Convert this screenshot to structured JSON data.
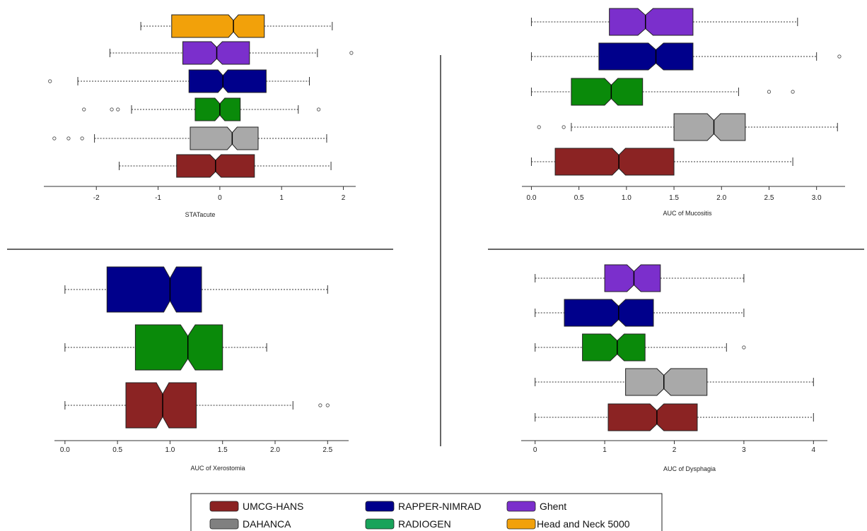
{
  "colors": {
    "UMCG-HANS": "#8B2323",
    "RAPPER-NIMRAD": "#00008B",
    "Ghent": "#7B2FCC",
    "DAHANCA": "#A9A9A9",
    "RADIOGEN": "#0A8A0A",
    "Head and Neck 5000": "#F2A10A"
  },
  "legend": {
    "items": [
      {
        "name": "UMCG-HANS",
        "color": "#8B2323"
      },
      {
        "name": "RAPPER-NIMRAD",
        "color": "#00008B"
      },
      {
        "name": "Ghent",
        "color": "#7B2FCC"
      },
      {
        "name": "DAHANCA",
        "color": "#808080"
      },
      {
        "name": "RADIOGEN",
        "color": "#18A35A"
      },
      {
        "name": "Head and Neck 5000",
        "color": "#F2A10A"
      }
    ]
  },
  "chart_data": [
    {
      "type": "boxplot",
      "xlabel": "STATacute",
      "xlim": [
        -2.85,
        2.2
      ],
      "ticks": [
        -2,
        -1,
        0,
        1,
        2
      ],
      "tick_labels": [
        "-2",
        "-1",
        "0",
        "1",
        "2"
      ],
      "series": [
        {
          "name": "Head and Neck 5000",
          "whisker_low": -1.28,
          "q1": -0.78,
          "median": 0.22,
          "q3": 0.72,
          "whisker_high": 1.82,
          "notch_low": 0.14,
          "notch_high": 0.3,
          "outliers": []
        },
        {
          "name": "Ghent",
          "whisker_low": -1.78,
          "q1": -0.6,
          "median": -0.05,
          "q3": 0.48,
          "whisker_high": 1.58,
          "notch_low": -0.14,
          "notch_high": 0.04,
          "outliers": [
            2.13
          ]
        },
        {
          "name": "RAPPER-NIMRAD",
          "whisker_low": -2.3,
          "q1": -0.5,
          "median": 0.05,
          "q3": 0.75,
          "whisker_high": 1.45,
          "notch_low": -0.03,
          "notch_high": 0.13,
          "outliers": [
            -2.75
          ]
        },
        {
          "name": "RADIOGEN",
          "whisker_low": -1.43,
          "q1": -0.4,
          "median": 0.0,
          "q3": 0.33,
          "whisker_high": 1.27,
          "notch_low": -0.08,
          "notch_high": 0.08,
          "outliers": [
            -2.2,
            -1.75,
            -1.65,
            1.6
          ]
        },
        {
          "name": "DAHANCA",
          "whisker_low": -2.03,
          "q1": -0.48,
          "median": 0.2,
          "q3": 0.62,
          "whisker_high": 1.73,
          "notch_low": 0.12,
          "notch_high": 0.28,
          "outliers": [
            -2.68,
            -2.45,
            -2.23
          ]
        },
        {
          "name": "UMCG-HANS",
          "whisker_low": -1.63,
          "q1": -0.7,
          "median": -0.07,
          "q3": 0.56,
          "whisker_high": 1.8,
          "notch_low": -0.16,
          "notch_high": 0.02,
          "outliers": []
        }
      ]
    },
    {
      "type": "boxplot",
      "xlabel": "AUC of Mucositis",
      "xlim": [
        -0.1,
        3.3
      ],
      "ticks": [
        0,
        0.5,
        1,
        1.5,
        2,
        2.5,
        3
      ],
      "tick_labels": [
        "0.0",
        "0.5",
        "1.0",
        "1.5",
        "2.0",
        "2.5",
        "3.0"
      ],
      "series": [
        {
          "name": "Ghent",
          "whisker_low": 0.0,
          "q1": 0.82,
          "median": 1.2,
          "q3": 1.7,
          "whisker_high": 2.8,
          "notch_low": 1.12,
          "notch_high": 1.28,
          "outliers": []
        },
        {
          "name": "RAPPER-NIMRAD",
          "whisker_low": 0.0,
          "q1": 0.71,
          "median": 1.31,
          "q3": 1.7,
          "whisker_high": 3.0,
          "notch_low": 1.23,
          "notch_high": 1.39,
          "outliers": [
            3.24
          ]
        },
        {
          "name": "RADIOGEN",
          "whisker_low": 0.0,
          "q1": 0.42,
          "median": 0.84,
          "q3": 1.17,
          "whisker_high": 2.18,
          "notch_low": 0.77,
          "notch_high": 0.91,
          "outliers": [
            2.5,
            2.75
          ]
        },
        {
          "name": "DAHANCA",
          "whisker_low": 0.42,
          "q1": 1.5,
          "median": 1.92,
          "q3": 2.25,
          "whisker_high": 3.22,
          "notch_low": 1.85,
          "notch_high": 1.99,
          "outliers": [
            0.08,
            0.34
          ]
        },
        {
          "name": "UMCG-HANS",
          "whisker_low": 0.0,
          "q1": 0.25,
          "median": 0.92,
          "q3": 1.5,
          "whisker_high": 2.75,
          "notch_low": 0.85,
          "notch_high": 0.99,
          "outliers": []
        }
      ]
    },
    {
      "type": "boxplot",
      "xlabel": "AUC of Xerostomia",
      "xlim": [
        -0.1,
        2.7
      ],
      "ticks": [
        0,
        0.5,
        1,
        1.5,
        2,
        2.5
      ],
      "tick_labels": [
        "0.0",
        "0.5",
        "1.0",
        "1.5",
        "2.0",
        "2.5"
      ],
      "series": [
        {
          "name": "RAPPER-NIMRAD",
          "whisker_low": 0.0,
          "q1": 0.4,
          "median": 1.0,
          "q3": 1.3,
          "whisker_high": 2.5,
          "notch_low": 0.94,
          "notch_high": 1.06,
          "outliers": []
        },
        {
          "name": "RADIOGEN",
          "whisker_low": 0.0,
          "q1": 0.67,
          "median": 1.17,
          "q3": 1.5,
          "whisker_high": 1.92,
          "notch_low": 1.1,
          "notch_high": 1.24,
          "outliers": []
        },
        {
          "name": "UMCG-HANS",
          "whisker_low": 0.0,
          "q1": 0.58,
          "median": 0.93,
          "q3": 1.25,
          "whisker_high": 2.17,
          "notch_low": 0.87,
          "notch_high": 0.99,
          "outliers": [
            2.43,
            2.5
          ]
        }
      ]
    },
    {
      "type": "boxplot",
      "xlabel": "AUC of Dysphagia",
      "xlim": [
        -0.2,
        4.2
      ],
      "ticks": [
        0,
        1,
        2,
        3,
        4
      ],
      "tick_labels": [
        "0",
        "1",
        "2",
        "3",
        "4"
      ],
      "series": [
        {
          "name": "Ghent",
          "whisker_low": 0.0,
          "q1": 1.0,
          "median": 1.42,
          "q3": 1.8,
          "whisker_high": 3.0,
          "notch_low": 1.32,
          "notch_high": 1.52,
          "outliers": []
        },
        {
          "name": "RAPPER-NIMRAD",
          "whisker_low": 0.0,
          "q1": 0.42,
          "median": 1.2,
          "q3": 1.7,
          "whisker_high": 3.0,
          "notch_low": 1.1,
          "notch_high": 1.3,
          "outliers": []
        },
        {
          "name": "RADIOGEN",
          "whisker_low": 0.0,
          "q1": 0.68,
          "median": 1.18,
          "q3": 1.58,
          "whisker_high": 2.75,
          "notch_low": 1.08,
          "notch_high": 1.28,
          "outliers": [
            3.0
          ]
        },
        {
          "name": "DAHANCA",
          "whisker_low": 0.0,
          "q1": 1.3,
          "median": 1.85,
          "q3": 2.47,
          "whisker_high": 4.0,
          "notch_low": 1.75,
          "notch_high": 1.95,
          "outliers": []
        },
        {
          "name": "UMCG-HANS",
          "whisker_low": 0.0,
          "q1": 1.05,
          "median": 1.75,
          "q3": 2.33,
          "whisker_high": 4.0,
          "notch_low": 1.65,
          "notch_high": 1.85,
          "outliers": []
        }
      ]
    }
  ]
}
